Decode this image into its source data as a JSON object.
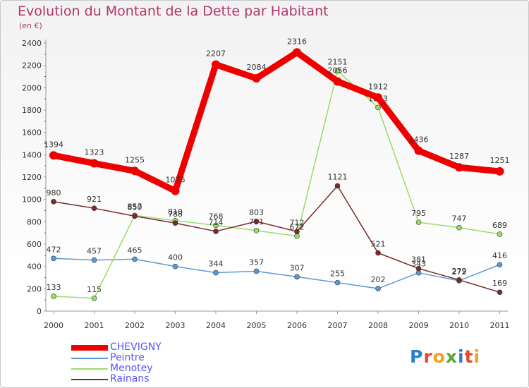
{
  "header": {
    "title": "Evolution du Montant de la Dette par Habitant",
    "subtitle": "(en €)"
  },
  "logo": {
    "letters": [
      "P",
      "r",
      "o",
      "x",
      "i",
      "t",
      "i"
    ],
    "colors": [
      "#2a7fd4",
      "#e34a2a",
      "#f1a11d",
      "#5aa82e",
      "#2a7fd4",
      "#e34a2a",
      "#f1a11d"
    ]
  },
  "chart_data": {
    "type": "line",
    "title": "Evolution du Montant de la Dette par Habitant",
    "subtitle": "(en €)",
    "x": [
      "2000",
      "2001",
      "2002",
      "2003",
      "2004",
      "2005",
      "2006",
      "2007",
      "2008",
      "2009",
      "2010",
      "2011"
    ],
    "ylim": [
      0,
      2400
    ],
    "yticks": [
      0,
      200,
      400,
      600,
      800,
      1000,
      1200,
      1400,
      1600,
      1800,
      2000,
      2200,
      2400
    ],
    "grid": false,
    "legend_position": "bottom-left",
    "series": [
      {
        "name": "Peintre",
        "color": "#5b9bd5",
        "values": [
          472,
          457,
          465,
          400,
          344,
          357,
          307,
          255,
          202,
          343,
          272,
          416
        ],
        "labels": [
          "472",
          "457",
          "465",
          "400",
          "344",
          "357",
          "307",
          "255",
          "202",
          "343",
          "272",
          "416"
        ]
      },
      {
        "name": "Menotey",
        "color": "#99dd66",
        "values": [
          133,
          115,
          857,
          810,
          768,
          721,
          672,
          2151,
          1823,
          795,
          747,
          689
        ],
        "labels": [
          "133",
          "115",
          "857",
          "810",
          "768",
          "721",
          "672",
          "2151",
          "1823",
          "795",
          "747",
          "689"
        ]
      },
      {
        "name": "Rainans",
        "color": "#7a2a2a",
        "values": [
          980,
          921,
          850,
          788,
          714,
          803,
          712,
          1121,
          521,
          381,
          279,
          169
        ],
        "labels": [
          "980",
          "921",
          "850",
          "788",
          "714",
          "803",
          "712",
          "1121",
          "521",
          "381",
          "279",
          "169"
        ]
      },
      {
        "name": "CHEVIGNY",
        "color": "#ee0000",
        "values": [
          1394,
          1323,
          1255,
          1076,
          2207,
          2084,
          2316,
          2056,
          1912,
          1436,
          1287,
          1251
        ],
        "labels": [
          "1394",
          "1323",
          "1255",
          "1076",
          "2207",
          "2084",
          "2316",
          "2056",
          "1912",
          "1436",
          "1287",
          "1251"
        ]
      }
    ],
    "legend": [
      {
        "name": "CHEVIGNY",
        "color": "#ee0000"
      },
      {
        "name": "Peintre",
        "color": "#5b9bd5"
      },
      {
        "name": "Menotey",
        "color": "#99dd66"
      },
      {
        "name": "Rainans",
        "color": "#7a2a2a"
      }
    ]
  }
}
